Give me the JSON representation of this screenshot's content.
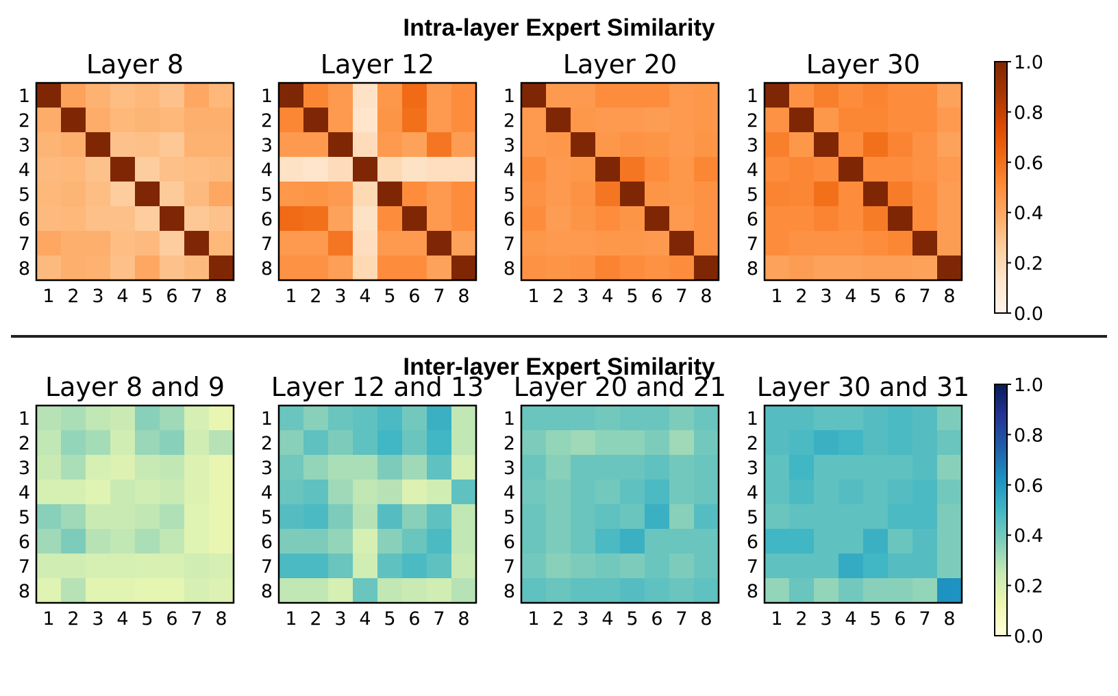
{
  "figure": {
    "intra_title": "Intra-layer Expert Similarity",
    "inter_title": "Inter-layer Expert Similarity"
  },
  "colors": {
    "intra_scale": "Oranges (white to dark red-brown)",
    "inter_scale": "YlGnBu (light yellow to dark blue)"
  },
  "chart_data": [
    {
      "type": "heatmap",
      "title": "Layer 8",
      "scale": "intra",
      "x_categories": [
        "1",
        "2",
        "3",
        "4",
        "5",
        "6",
        "7",
        "8"
      ],
      "y_categories": [
        "1",
        "2",
        "3",
        "4",
        "5",
        "6",
        "7",
        "8"
      ],
      "zlim": [
        0.0,
        1.0
      ],
      "values": [
        [
          1.0,
          0.42,
          0.36,
          0.32,
          0.34,
          0.3,
          0.4,
          0.34
        ],
        [
          0.38,
          1.0,
          0.38,
          0.34,
          0.35,
          0.34,
          0.37,
          0.37
        ],
        [
          0.35,
          0.37,
          1.0,
          0.3,
          0.31,
          0.28,
          0.36,
          0.36
        ],
        [
          0.33,
          0.34,
          0.3,
          1.0,
          0.26,
          0.31,
          0.32,
          0.33
        ],
        [
          0.34,
          0.35,
          0.32,
          0.26,
          1.0,
          0.27,
          0.33,
          0.4
        ],
        [
          0.33,
          0.34,
          0.31,
          0.31,
          0.26,
          1.0,
          0.28,
          0.3
        ],
        [
          0.4,
          0.37,
          0.37,
          0.32,
          0.33,
          0.26,
          1.0,
          0.34
        ],
        [
          0.33,
          0.37,
          0.36,
          0.31,
          0.4,
          0.3,
          0.33,
          1.0
        ]
      ]
    },
    {
      "type": "heatmap",
      "title": "Layer 12",
      "scale": "intra",
      "x_categories": [
        "1",
        "2",
        "3",
        "4",
        "5",
        "6",
        "7",
        "8"
      ],
      "y_categories": [
        "1",
        "2",
        "3",
        "4",
        "5",
        "6",
        "7",
        "8"
      ],
      "zlim": [
        0.0,
        1.0
      ],
      "values": [
        [
          1.0,
          0.52,
          0.45,
          0.15,
          0.46,
          0.62,
          0.45,
          0.5
        ],
        [
          0.52,
          1.0,
          0.45,
          0.13,
          0.47,
          0.6,
          0.45,
          0.5
        ],
        [
          0.45,
          0.45,
          1.0,
          0.18,
          0.45,
          0.42,
          0.58,
          0.44
        ],
        [
          0.15,
          0.13,
          0.18,
          1.0,
          0.2,
          0.15,
          0.17,
          0.17
        ],
        [
          0.46,
          0.47,
          0.45,
          0.2,
          1.0,
          0.5,
          0.45,
          0.5
        ],
        [
          0.62,
          0.6,
          0.42,
          0.15,
          0.5,
          1.0,
          0.45,
          0.5
        ],
        [
          0.45,
          0.45,
          0.58,
          0.17,
          0.45,
          0.45,
          1.0,
          0.42
        ],
        [
          0.48,
          0.48,
          0.43,
          0.2,
          0.5,
          0.5,
          0.42,
          1.0
        ]
      ]
    },
    {
      "type": "heatmap",
      "title": "Layer 20",
      "scale": "intra",
      "x_categories": [
        "1",
        "2",
        "3",
        "4",
        "5",
        "6",
        "7",
        "8"
      ],
      "y_categories": [
        "1",
        "2",
        "3",
        "4",
        "5",
        "6",
        "7",
        "8"
      ],
      "zlim": [
        0.0,
        1.0
      ],
      "values": [
        [
          1.0,
          0.45,
          0.45,
          0.5,
          0.5,
          0.5,
          0.45,
          0.46
        ],
        [
          0.45,
          1.0,
          0.46,
          0.45,
          0.45,
          0.44,
          0.45,
          0.46
        ],
        [
          0.45,
          0.46,
          1.0,
          0.46,
          0.48,
          0.47,
          0.45,
          0.47
        ],
        [
          0.5,
          0.45,
          0.46,
          1.0,
          0.58,
          0.5,
          0.46,
          0.52
        ],
        [
          0.48,
          0.45,
          0.48,
          0.58,
          1.0,
          0.47,
          0.46,
          0.48
        ],
        [
          0.5,
          0.44,
          0.47,
          0.5,
          0.47,
          1.0,
          0.45,
          0.48
        ],
        [
          0.46,
          0.45,
          0.45,
          0.46,
          0.46,
          0.45,
          1.0,
          0.48
        ],
        [
          0.48,
          0.47,
          0.48,
          0.53,
          0.5,
          0.48,
          0.5,
          1.0
        ]
      ]
    },
    {
      "type": "heatmap",
      "title": "Layer 30",
      "scale": "intra",
      "x_categories": [
        "1",
        "2",
        "3",
        "4",
        "5",
        "6",
        "7",
        "8"
      ],
      "y_categories": [
        "1",
        "2",
        "3",
        "4",
        "5",
        "6",
        "7",
        "8"
      ],
      "zlim": [
        0.0,
        1.0
      ],
      "values": [
        [
          1.0,
          0.48,
          0.55,
          0.5,
          0.53,
          0.5,
          0.5,
          0.42
        ],
        [
          0.48,
          1.0,
          0.46,
          0.52,
          0.52,
          0.5,
          0.5,
          0.45
        ],
        [
          0.55,
          0.46,
          1.0,
          0.5,
          0.6,
          0.53,
          0.48,
          0.42
        ],
        [
          0.5,
          0.52,
          0.5,
          1.0,
          0.5,
          0.5,
          0.48,
          0.45
        ],
        [
          0.53,
          0.52,
          0.6,
          0.5,
          1.0,
          0.56,
          0.5,
          0.44
        ],
        [
          0.5,
          0.5,
          0.53,
          0.5,
          0.56,
          1.0,
          0.5,
          0.44
        ],
        [
          0.5,
          0.48,
          0.48,
          0.48,
          0.5,
          0.52,
          1.0,
          0.44
        ],
        [
          0.42,
          0.44,
          0.42,
          0.42,
          0.43,
          0.43,
          0.42,
          1.0
        ]
      ]
    },
    {
      "type": "heatmap",
      "title": "Layer 8 and 9",
      "scale": "inter",
      "x_categories": [
        "1",
        "2",
        "3",
        "4",
        "5",
        "6",
        "7",
        "8"
      ],
      "y_categories": [
        "1",
        "2",
        "3",
        "4",
        "5",
        "6",
        "7",
        "8"
      ],
      "zlim": [
        0.0,
        1.0
      ],
      "values": [
        [
          0.28,
          0.3,
          0.26,
          0.24,
          0.36,
          0.32,
          0.2,
          0.14
        ],
        [
          0.26,
          0.34,
          0.31,
          0.22,
          0.33,
          0.36,
          0.22,
          0.28
        ],
        [
          0.24,
          0.3,
          0.2,
          0.18,
          0.25,
          0.26,
          0.18,
          0.14
        ],
        [
          0.2,
          0.2,
          0.17,
          0.24,
          0.22,
          0.24,
          0.18,
          0.14
        ],
        [
          0.36,
          0.32,
          0.24,
          0.24,
          0.26,
          0.29,
          0.17,
          0.14
        ],
        [
          0.32,
          0.38,
          0.28,
          0.26,
          0.3,
          0.26,
          0.17,
          0.14
        ],
        [
          0.22,
          0.22,
          0.2,
          0.2,
          0.19,
          0.19,
          0.22,
          0.2
        ],
        [
          0.17,
          0.28,
          0.16,
          0.16,
          0.15,
          0.15,
          0.2,
          0.18
        ]
      ]
    },
    {
      "type": "heatmap",
      "title": "Layer 12 and 13",
      "scale": "inter",
      "x_categories": [
        "1",
        "2",
        "3",
        "4",
        "5",
        "6",
        "7",
        "8"
      ],
      "y_categories": [
        "1",
        "2",
        "3",
        "4",
        "5",
        "6",
        "7",
        "8"
      ],
      "zlim": [
        0.0,
        1.0
      ],
      "values": [
        [
          0.42,
          0.36,
          0.42,
          0.44,
          0.48,
          0.4,
          0.52,
          0.26
        ],
        [
          0.36,
          0.44,
          0.38,
          0.44,
          0.5,
          0.42,
          0.5,
          0.26
        ],
        [
          0.4,
          0.34,
          0.3,
          0.3,
          0.38,
          0.32,
          0.44,
          0.2
        ],
        [
          0.42,
          0.44,
          0.32,
          0.26,
          0.28,
          0.18,
          0.22,
          0.44
        ],
        [
          0.46,
          0.48,
          0.38,
          0.28,
          0.46,
          0.36,
          0.44,
          0.26
        ],
        [
          0.38,
          0.38,
          0.34,
          0.2,
          0.36,
          0.42,
          0.48,
          0.26
        ],
        [
          0.48,
          0.48,
          0.42,
          0.22,
          0.44,
          0.48,
          0.44,
          0.24
        ],
        [
          0.26,
          0.26,
          0.2,
          0.42,
          0.26,
          0.24,
          0.22,
          0.28
        ]
      ]
    },
    {
      "type": "heatmap",
      "title": "Layer 20 and 21",
      "scale": "inter",
      "x_categories": [
        "1",
        "2",
        "3",
        "4",
        "5",
        "6",
        "7",
        "8"
      ],
      "y_categories": [
        "1",
        "2",
        "3",
        "4",
        "5",
        "6",
        "7",
        "8"
      ],
      "zlim": [
        0.0,
        1.0
      ],
      "values": [
        [
          0.42,
          0.42,
          0.42,
          0.4,
          0.42,
          0.42,
          0.38,
          0.42
        ],
        [
          0.38,
          0.34,
          0.32,
          0.35,
          0.35,
          0.38,
          0.32,
          0.4
        ],
        [
          0.42,
          0.36,
          0.42,
          0.42,
          0.42,
          0.44,
          0.4,
          0.42
        ],
        [
          0.4,
          0.38,
          0.42,
          0.4,
          0.44,
          0.48,
          0.4,
          0.42
        ],
        [
          0.42,
          0.38,
          0.42,
          0.44,
          0.42,
          0.52,
          0.36,
          0.46
        ],
        [
          0.42,
          0.38,
          0.42,
          0.48,
          0.52,
          0.42,
          0.42,
          0.42
        ],
        [
          0.4,
          0.36,
          0.38,
          0.4,
          0.38,
          0.42,
          0.38,
          0.42
        ],
        [
          0.44,
          0.42,
          0.44,
          0.44,
          0.46,
          0.44,
          0.42,
          0.44
        ]
      ]
    },
    {
      "type": "heatmap",
      "title": "Layer 30 and 31",
      "scale": "inter",
      "x_categories": [
        "1",
        "2",
        "3",
        "4",
        "5",
        "6",
        "7",
        "8"
      ],
      "y_categories": [
        "1",
        "2",
        "3",
        "4",
        "5",
        "6",
        "7",
        "8"
      ],
      "zlim": [
        0.0,
        1.0
      ],
      "values": [
        [
          0.46,
          0.46,
          0.44,
          0.44,
          0.46,
          0.48,
          0.46,
          0.38
        ],
        [
          0.46,
          0.48,
          0.52,
          0.5,
          0.46,
          0.48,
          0.46,
          0.42
        ],
        [
          0.44,
          0.5,
          0.44,
          0.44,
          0.44,
          0.44,
          0.46,
          0.36
        ],
        [
          0.44,
          0.48,
          0.44,
          0.46,
          0.44,
          0.46,
          0.48,
          0.4
        ],
        [
          0.42,
          0.44,
          0.44,
          0.44,
          0.44,
          0.48,
          0.48,
          0.38
        ],
        [
          0.5,
          0.5,
          0.44,
          0.44,
          0.52,
          0.42,
          0.46,
          0.38
        ],
        [
          0.44,
          0.44,
          0.44,
          0.54,
          0.5,
          0.46,
          0.46,
          0.38
        ],
        [
          0.34,
          0.42,
          0.34,
          0.4,
          0.36,
          0.36,
          0.34,
          0.62
        ]
      ]
    }
  ],
  "colorbars": [
    {
      "scale": "intra",
      "ticks": [
        "0.0",
        "0.2",
        "0.4",
        "0.6",
        "0.8",
        "1.0"
      ]
    },
    {
      "scale": "inter",
      "ticks": [
        "0.0",
        "0.2",
        "0.4",
        "0.6",
        "0.8",
        "1.0"
      ]
    }
  ]
}
